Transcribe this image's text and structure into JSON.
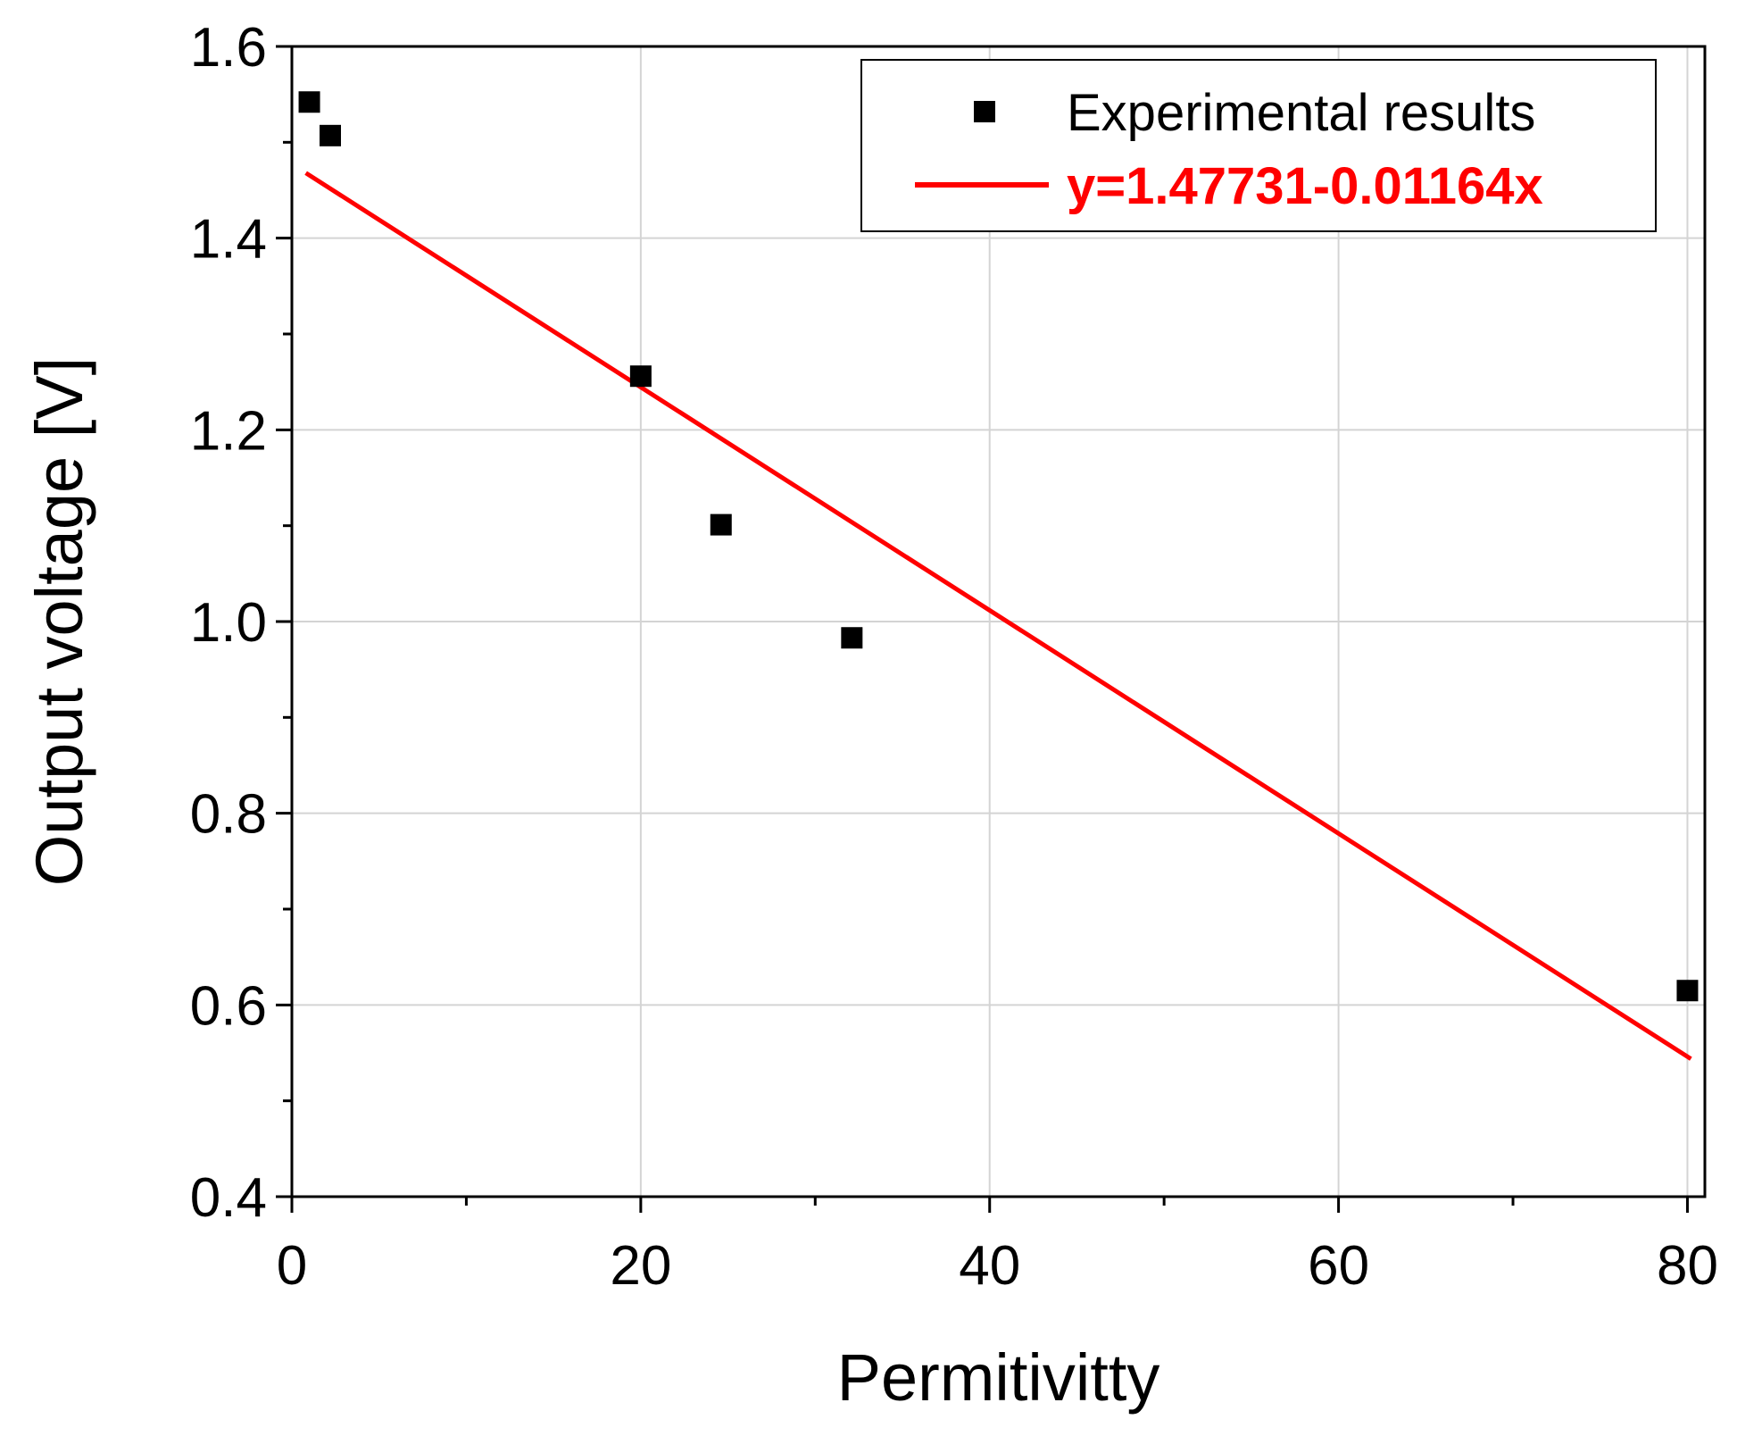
{
  "chart_data": {
    "type": "scatter",
    "title": "",
    "xlabel": "Permitivitty",
    "ylabel": "Output voltage [V]",
    "xlim": [
      0,
      81
    ],
    "ylim": [
      0.4,
      1.6
    ],
    "xticks": [
      0,
      20,
      40,
      60,
      80
    ],
    "yticks": [
      0.4,
      0.6,
      0.8,
      1.0,
      1.2,
      1.4,
      1.6
    ],
    "xtick_labels": [
      "0",
      "20",
      "40",
      "60",
      "80"
    ],
    "ytick_labels": [
      "0.4",
      "0.6",
      "0.8",
      "1.0",
      "1.2",
      "1.4",
      "1.6"
    ],
    "grid": true,
    "legend_position": "top-right",
    "series": [
      {
        "name": "Experimental results",
        "kind": "scatter",
        "marker": "square",
        "color": "#000000",
        "x": [
          1,
          2.2,
          20,
          24.6,
          32.1,
          80
        ],
        "y": [
          1.542,
          1.507,
          1.256,
          1.101,
          0.983,
          0.615
        ]
      },
      {
        "name": "y=1.47731-0.01164x",
        "kind": "line",
        "color": "#ff0000",
        "intercept": 1.47731,
        "slope": -0.01164,
        "x_range": [
          0.8,
          80.2
        ]
      }
    ]
  }
}
